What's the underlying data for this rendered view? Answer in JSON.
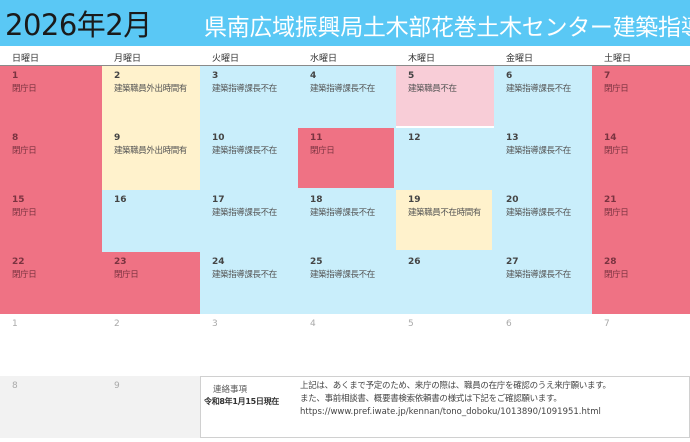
{
  "header": {
    "month_title": "2026年2月",
    "office_name": "県南広域振興局土木部花巻土木センター建築指導課",
    "background_color": "#5ac8f5"
  },
  "weekdays": [
    "日曜日",
    "月曜日",
    "火曜日",
    "水曜日",
    "木曜日",
    "金曜日",
    "土曜日"
  ],
  "status_colors": {
    "closed": "#ef7284",
    "staff_out_partial": "#fff2cc",
    "section_chief_absent": "#c9eefb",
    "staff_absent": "#f8cdd7",
    "next_month": "#ffffff",
    "overflow": "#f2f2f2"
  },
  "calendar": {
    "weeks": [
      [
        {
          "day": "1",
          "note": "閉庁日",
          "style": "red"
        },
        {
          "day": "2",
          "note": "建築職員外出時間有",
          "style": "cream"
        },
        {
          "day": "3",
          "note": "建築指導課長不在",
          "style": "blue"
        },
        {
          "day": "4",
          "note": "建築指導課長不在",
          "style": "blue"
        },
        {
          "day": "5",
          "note": "建築職員不在",
          "style": "inset-pink"
        },
        {
          "day": "6",
          "note": "建築指導課長不在",
          "style": "blue"
        },
        {
          "day": "7",
          "note": "閉庁日",
          "style": "red"
        }
      ],
      [
        {
          "day": "8",
          "note": "閉庁日",
          "style": "red"
        },
        {
          "day": "9",
          "note": "建築職員外出時間有",
          "style": "cream"
        },
        {
          "day": "10",
          "note": "建築指導課長不在",
          "style": "blue"
        },
        {
          "day": "11",
          "note": "閉庁日",
          "style": "inset-red"
        },
        {
          "day": "12",
          "note": "",
          "style": "blue"
        },
        {
          "day": "13",
          "note": "建築指導課長不在",
          "style": "blue"
        },
        {
          "day": "14",
          "note": "閉庁日",
          "style": "red"
        }
      ],
      [
        {
          "day": "15",
          "note": "閉庁日",
          "style": "red"
        },
        {
          "day": "16",
          "note": "",
          "style": "blue"
        },
        {
          "day": "17",
          "note": "建築指導課長不在",
          "style": "blue"
        },
        {
          "day": "18",
          "note": "建築指導課長不在",
          "style": "blue"
        },
        {
          "day": "19",
          "note": "建築職員不在時間有",
          "style": "inset-cream"
        },
        {
          "day": "20",
          "note": "建築指導課長不在",
          "style": "blue"
        },
        {
          "day": "21",
          "note": "閉庁日",
          "style": "red"
        }
      ],
      [
        {
          "day": "22",
          "note": "閉庁日",
          "style": "red"
        },
        {
          "day": "23",
          "note": "閉庁日",
          "style": "red"
        },
        {
          "day": "24",
          "note": "建築指導課長不在",
          "style": "blue"
        },
        {
          "day": "25",
          "note": "建築指導課長不在",
          "style": "blue"
        },
        {
          "day": "26",
          "note": "",
          "style": "blue"
        },
        {
          "day": "27",
          "note": "建築指導課長不在",
          "style": "blue"
        },
        {
          "day": "28",
          "note": "閉庁日",
          "style": "red"
        }
      ],
      [
        {
          "day": "1",
          "note": "",
          "style": "next"
        },
        {
          "day": "2",
          "note": "",
          "style": "next"
        },
        {
          "day": "3",
          "note": "",
          "style": "next"
        },
        {
          "day": "4",
          "note": "",
          "style": "next"
        },
        {
          "day": "5",
          "note": "",
          "style": "next"
        },
        {
          "day": "6",
          "note": "",
          "style": "next"
        },
        {
          "day": "7",
          "note": "",
          "style": "next"
        }
      ],
      [
        {
          "day": "8",
          "note": "",
          "style": "grey"
        },
        {
          "day": "9",
          "note": "",
          "style": "grey"
        }
      ]
    ]
  },
  "notice": {
    "label": "連絡事項",
    "as_of": "令和8年1月15日現在",
    "lines": [
      "上記は、あくまで予定のため、来庁の際は、職員の在庁を確認のうえ来庁願います。",
      "また、事前相談書、概要書検索依頼書の様式は下記をご確認願います。",
      "https://www.pref.iwate.jp/kennan/tono_doboku/1013890/1091951.html"
    ]
  }
}
